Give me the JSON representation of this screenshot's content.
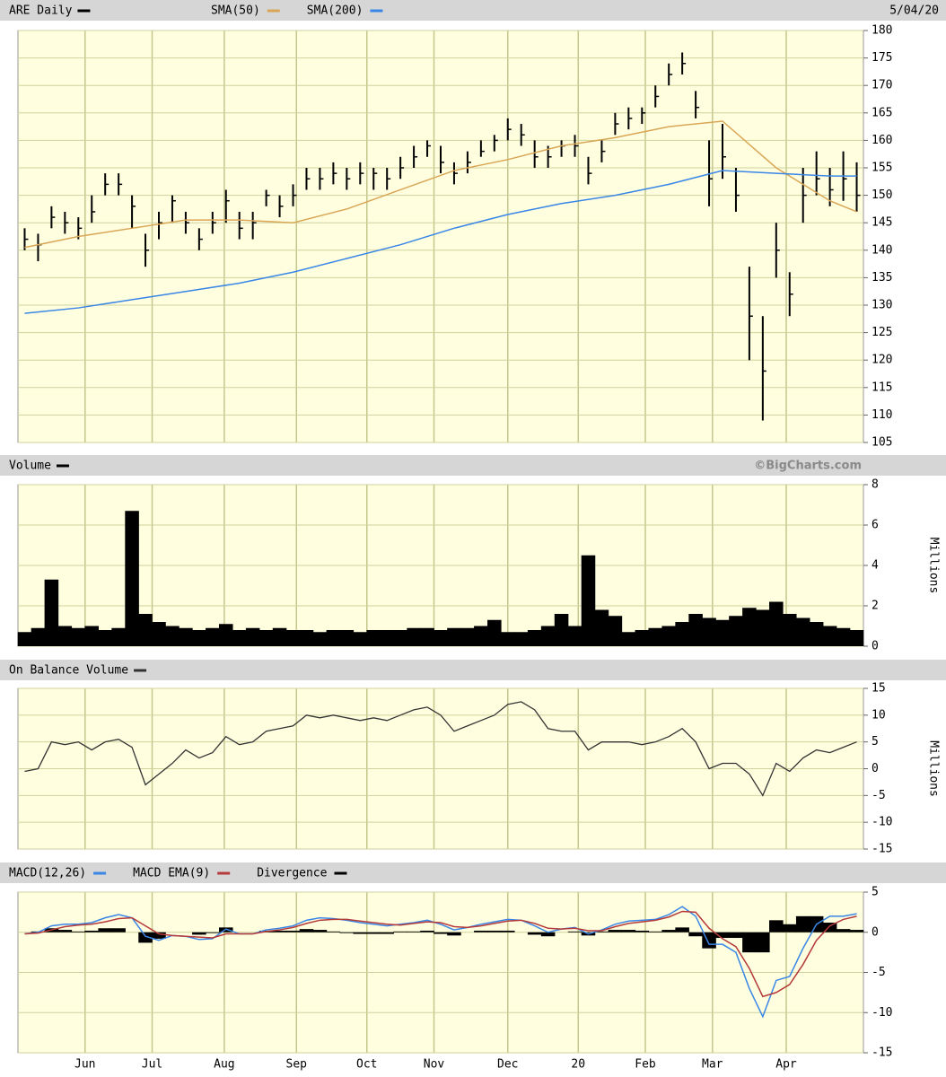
{
  "chart_data": [
    {
      "type": "ohlc",
      "title": "ARE Daily",
      "date": "5/04/20",
      "color": "#000000",
      "x": [
        2,
        6,
        10,
        14,
        18,
        22,
        26,
        30,
        34,
        38,
        42,
        46,
        50,
        54,
        58,
        62,
        66,
        70,
        74,
        78,
        82,
        86,
        90,
        94,
        98,
        102,
        106,
        110,
        114,
        118,
        122,
        126,
        130,
        134,
        138,
        142,
        146,
        150,
        154,
        158,
        162,
        166,
        170,
        174,
        178,
        182,
        186,
        190,
        194,
        198,
        202,
        206,
        210,
        214,
        218,
        222,
        226,
        230,
        234,
        238,
        242,
        246,
        250
      ],
      "high": [
        144,
        143,
        148,
        147,
        146,
        150,
        154,
        154,
        150,
        143,
        147,
        150,
        147,
        144,
        147,
        151,
        147,
        147,
        151,
        150,
        152,
        155,
        155,
        156,
        155,
        156,
        155,
        155,
        157,
        159,
        160,
        159,
        156,
        158,
        160,
        161,
        164,
        163,
        160,
        159,
        160,
        161,
        157,
        160,
        165,
        166,
        166,
        170,
        174,
        176,
        169,
        160,
        163,
        155,
        137,
        128,
        145,
        136,
        155,
        158,
        155,
        158,
        156
      ],
      "low": [
        140,
        138,
        144,
        143,
        142,
        145,
        150,
        150,
        144,
        137,
        142,
        145,
        143,
        140,
        143,
        145,
        142,
        142,
        148,
        146,
        148,
        151,
        151,
        152,
        151,
        152,
        151,
        151,
        153,
        155,
        157,
        154,
        152,
        154,
        157,
        158,
        160,
        159,
        155,
        155,
        157,
        157,
        152,
        156,
        161,
        162,
        163,
        166,
        170,
        172,
        164,
        148,
        153,
        147,
        120,
        109,
        135,
        128,
        145,
        150,
        148,
        149,
        147
      ],
      "close": [
        142,
        141,
        146,
        145,
        144,
        147,
        152,
        152,
        148,
        140,
        145,
        149,
        145,
        142,
        145,
        149,
        144,
        145,
        150,
        148,
        150,
        153,
        153,
        154,
        153,
        154,
        154,
        153,
        155,
        157,
        159,
        156,
        154,
        156,
        158,
        160,
        162,
        161,
        157,
        157,
        159,
        159,
        154,
        158,
        163,
        164,
        165,
        168,
        172,
        174,
        166,
        153,
        157,
        150,
        128,
        118,
        140,
        132,
        150,
        153,
        151,
        153,
        150
      ],
      "series": [
        {
          "name": "SMA(50)",
          "color": "#d9a656",
          "x": [
            2,
            18,
            34,
            50,
            66,
            82,
            98,
            114,
            130,
            146,
            162,
            178,
            194,
            210,
            226,
            242,
            250
          ],
          "values": [
            140.5,
            142.5,
            144,
            145.5,
            145.5,
            145,
            147.5,
            151,
            154.5,
            156.5,
            159,
            160.5,
            162.5,
            163.5,
            155,
            149,
            147
          ]
        },
        {
          "name": "SMA(200)",
          "color": "#3a86e6",
          "x": [
            2,
            18,
            34,
            50,
            66,
            82,
            98,
            114,
            130,
            146,
            162,
            178,
            194,
            210,
            226,
            242,
            250
          ],
          "values": [
            128.5,
            129.5,
            131,
            132.5,
            134,
            136,
            138.5,
            141,
            144,
            146.5,
            148.5,
            150,
            152,
            154.5,
            154,
            153.5,
            153.5
          ]
        }
      ],
      "ylim": [
        105,
        180
      ],
      "yticks": [
        105,
        110,
        115,
        120,
        125,
        130,
        135,
        140,
        145,
        150,
        155,
        160,
        165,
        170,
        175,
        180
      ],
      "grid": true
    },
    {
      "type": "bar",
      "title": "Volume",
      "credit": "©BigCharts.com",
      "y_label": "Millions",
      "color": "#000000",
      "x": [
        2,
        6,
        10,
        14,
        18,
        22,
        26,
        30,
        34,
        38,
        42,
        46,
        50,
        54,
        58,
        62,
        66,
        70,
        74,
        78,
        82,
        86,
        90,
        94,
        98,
        102,
        106,
        110,
        114,
        118,
        122,
        126,
        130,
        134,
        138,
        142,
        146,
        150,
        154,
        158,
        162,
        166,
        170,
        174,
        178,
        182,
        186,
        190,
        194,
        198,
        202,
        206,
        210,
        214,
        218,
        222,
        226,
        230,
        234,
        238,
        242,
        246,
        250
      ],
      "values": [
        0.7,
        0.9,
        3.3,
        1.0,
        0.9,
        1.0,
        0.8,
        0.9,
        6.7,
        1.6,
        1.2,
        1.0,
        0.9,
        0.8,
        0.9,
        1.1,
        0.8,
        0.9,
        0.8,
        0.9,
        0.8,
        0.8,
        0.7,
        0.8,
        0.8,
        0.7,
        0.8,
        0.8,
        0.8,
        0.9,
        0.9,
        0.8,
        0.9,
        0.9,
        1.0,
        1.3,
        0.7,
        0.7,
        0.8,
        1.0,
        1.6,
        1.0,
        4.5,
        1.8,
        1.5,
        0.7,
        0.8,
        0.9,
        1.0,
        1.2,
        1.6,
        1.4,
        1.3,
        1.5,
        1.9,
        1.8,
        2.2,
        1.6,
        1.4,
        1.2,
        1.0,
        0.9,
        0.8
      ],
      "ylim": [
        0,
        8
      ],
      "yticks": [
        0,
        2,
        4,
        6,
        8
      ],
      "grid": true
    },
    {
      "type": "line",
      "title": "On Balance Volume",
      "y_label": "Millions",
      "color": "#333333",
      "x": [
        2,
        6,
        10,
        14,
        18,
        22,
        26,
        30,
        34,
        38,
        42,
        46,
        50,
        54,
        58,
        62,
        66,
        70,
        74,
        78,
        82,
        86,
        90,
        94,
        98,
        102,
        106,
        110,
        114,
        118,
        122,
        126,
        130,
        134,
        138,
        142,
        146,
        150,
        154,
        158,
        162,
        166,
        170,
        174,
        178,
        182,
        186,
        190,
        194,
        198,
        202,
        206,
        210,
        214,
        218,
        222,
        226,
        230,
        234,
        238,
        242,
        246,
        250
      ],
      "values": [
        -0.5,
        0,
        5,
        4.5,
        5,
        3.5,
        5,
        5.5,
        4,
        -3,
        -1,
        1,
        3.5,
        2,
        3,
        6,
        4.5,
        5,
        7,
        7.5,
        8,
        10,
        9.5,
        10,
        9.5,
        9,
        9.5,
        9,
        10,
        11,
        11.5,
        10,
        7,
        8,
        9,
        10,
        12,
        12.5,
        11,
        7.5,
        7,
        7,
        3.5,
        5,
        5,
        5,
        4.5,
        5,
        6,
        7.5,
        5,
        0,
        1,
        1,
        -1,
        -5,
        1,
        -0.5,
        2,
        3.5,
        3,
        4,
        5
      ],
      "ylim": [
        -15,
        15
      ],
      "yticks": [
        -15,
        -10,
        -5,
        0,
        5,
        10,
        15
      ],
      "grid": true
    },
    {
      "type": "macd",
      "x": [
        2,
        6,
        10,
        14,
        18,
        22,
        26,
        30,
        34,
        38,
        42,
        46,
        50,
        54,
        58,
        62,
        66,
        70,
        74,
        78,
        82,
        86,
        90,
        94,
        98,
        102,
        106,
        110,
        114,
        118,
        122,
        126,
        130,
        134,
        138,
        142,
        146,
        150,
        154,
        158,
        162,
        166,
        170,
        174,
        178,
        182,
        186,
        190,
        194,
        198,
        202,
        206,
        210,
        214,
        218,
        222,
        226,
        230,
        234,
        238,
        242,
        246,
        250
      ],
      "series": [
        {
          "name": "MACD(12,26)",
          "color": "#3a86e6",
          "values": [
            -0.2,
            0,
            0.8,
            1.0,
            1.0,
            1.2,
            1.8,
            2.2,
            1.8,
            -0.5,
            -1.0,
            -0.4,
            -0.5,
            -0.9,
            -0.8,
            0.4,
            -0.2,
            -0.2,
            0.3,
            0.5,
            0.8,
            1.5,
            1.8,
            1.7,
            1.5,
            1.2,
            1.0,
            0.8,
            1.0,
            1.2,
            1.5,
            1.0,
            0.3,
            0.6,
            1.0,
            1.3,
            1.6,
            1.5,
            0.8,
            0,
            0.4,
            0.6,
            -0.2,
            0.3,
            1.0,
            1.4,
            1.5,
            1.6,
            2.2,
            3.2,
            2.0,
            -1.5,
            -1.5,
            -2.5,
            -7,
            -10.5,
            -6,
            -5.5,
            -2,
            1.0,
            2.0,
            2.0,
            2.3
          ]
        },
        {
          "name": "MACD EMA(9)",
          "color": "#b53a3a",
          "values": [
            -0.2,
            -0.1,
            0.3,
            0.7,
            0.9,
            1.0,
            1.3,
            1.7,
            1.8,
            0.8,
            -0.2,
            -0.4,
            -0.5,
            -0.6,
            -0.7,
            -0.2,
            -0.2,
            -0.2,
            0.1,
            0.3,
            0.6,
            1.1,
            1.5,
            1.6,
            1.6,
            1.4,
            1.2,
            1.0,
            0.9,
            1.1,
            1.3,
            1.2,
            0.7,
            0.6,
            0.8,
            1.1,
            1.4,
            1.5,
            1.1,
            0.5,
            0.4,
            0.5,
            0.2,
            0.2,
            0.7,
            1.1,
            1.3,
            1.5,
            1.9,
            2.6,
            2.5,
            0.5,
            -0.8,
            -1.8,
            -4.5,
            -8,
            -7.5,
            -6.5,
            -4,
            -1,
            0.8,
            1.6,
            2.0
          ]
        },
        {
          "name": "Divergence",
          "color": "#000000",
          "style": "bar",
          "values": [
            0,
            0.1,
            0.5,
            0.3,
            0.1,
            0.2,
            0.5,
            0.5,
            0,
            -1.3,
            -0.8,
            0,
            0,
            -0.3,
            -0.1,
            0.6,
            0,
            0,
            0.2,
            0.2,
            0.2,
            0.4,
            0.3,
            0.1,
            -0.1,
            -0.2,
            -0.2,
            -0.2,
            0.1,
            0.1,
            0.2,
            -0.2,
            -0.4,
            0,
            0.2,
            0.2,
            0.2,
            0,
            -0.3,
            -0.5,
            0,
            0.1,
            -0.4,
            0.1,
            0.3,
            0.3,
            0.2,
            0.1,
            0.3,
            0.6,
            -0.5,
            -2.0,
            -0.7,
            -0.7,
            -2.5,
            -2.5,
            1.5,
            1.0,
            2.0,
            2.0,
            1.2,
            0.4,
            0.3
          ]
        }
      ],
      "ylim": [
        -15,
        5
      ],
      "yticks": [
        -15,
        -10,
        -5,
        0,
        5
      ],
      "grid": true,
      "xlim": [
        0,
        252
      ],
      "xticks": [
        {
          "value": 20,
          "label": "Jun"
        },
        {
          "value": 40,
          "label": "Jul"
        },
        {
          "value": 61.5,
          "label": "Aug"
        },
        {
          "value": 83,
          "label": "Sep"
        },
        {
          "value": 104,
          "label": "Oct"
        },
        {
          "value": 124,
          "label": "Nov"
        },
        {
          "value": 146,
          "label": "Dec"
        },
        {
          "value": 167,
          "label": "20"
        },
        {
          "value": 187,
          "label": "Feb"
        },
        {
          "value": 207,
          "label": "Mar"
        },
        {
          "value": 229,
          "label": "Apr"
        }
      ]
    }
  ]
}
